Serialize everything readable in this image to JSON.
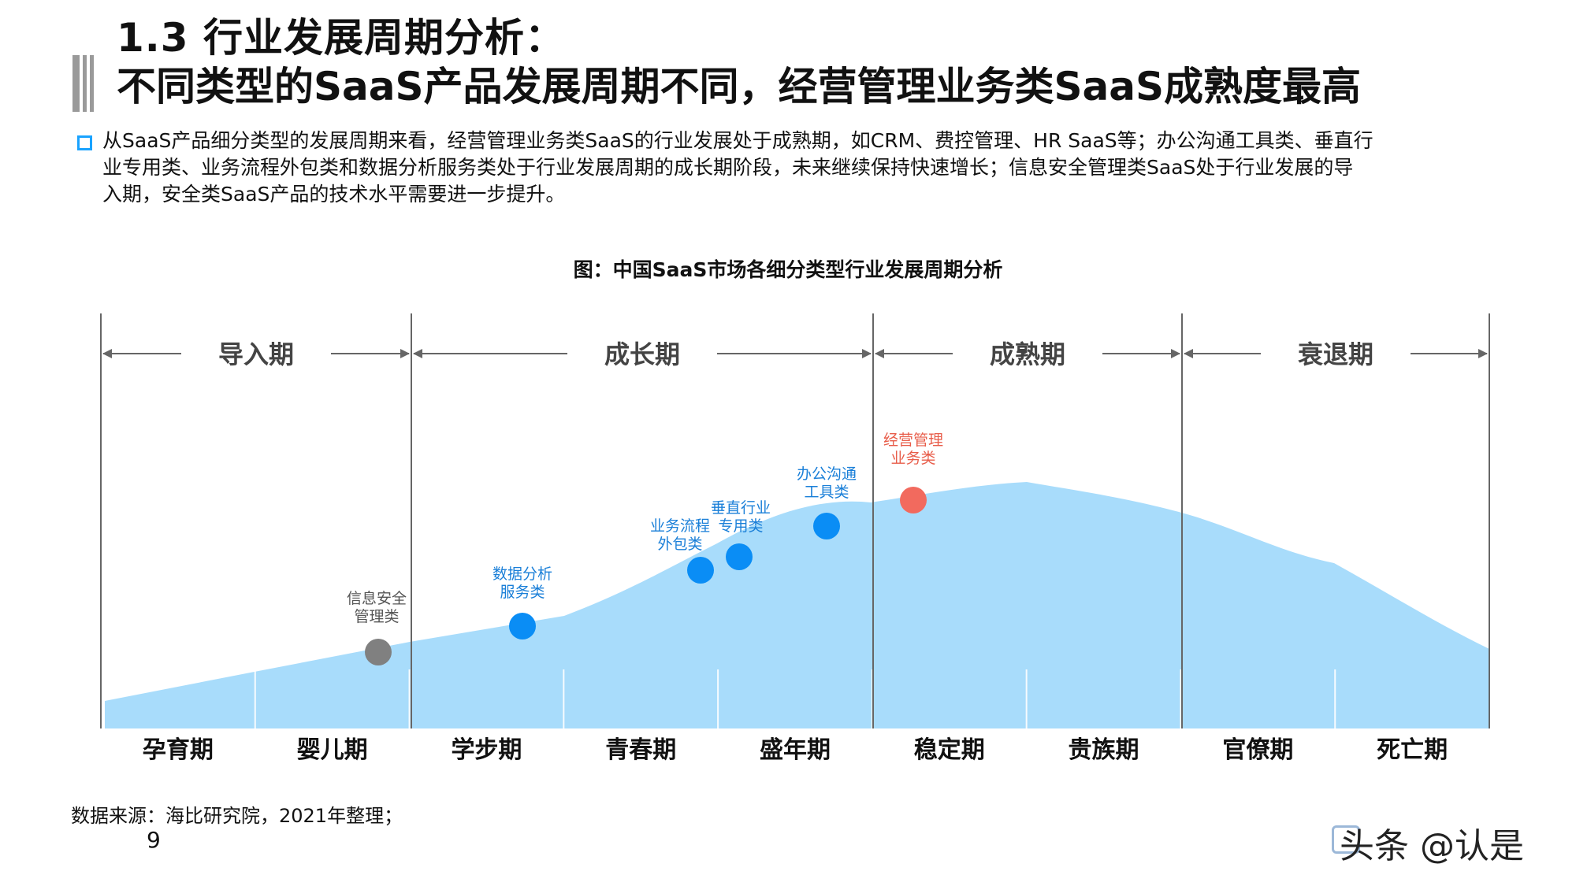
{
  "header": {
    "title_line1": "1.3 行业发展周期分析：",
    "title_line2": "不同类型的SaaS产品发展周期不同，经营管理业务类SaaS成熟度最高"
  },
  "description": {
    "lines": [
      "从SaaS产品细分类型的发展周期来看，经营管理业务类SaaS的行业发展处于成熟期，如CRM、费控管理、HR SaaS等；办公沟通工具类、垂直行",
      "业专用类、业务流程外包类和数据分析服务类处于行业发展周期的成长期阶段，未来继续保持快速增长；信息安全管理类SaaS处于行业发展的导",
      "入期，安全类SaaS产品的技术水平需要进一步提升。"
    ]
  },
  "figure": {
    "title": "图：中国SaaS市场各细分类型行业发展周期分析",
    "phases": [
      "导入期",
      "成长期",
      "成熟期",
      "衰退期"
    ],
    "stages": [
      "孕育期",
      "婴儿期",
      "学步期",
      "青春期",
      "盛年期",
      "稳定期",
      "贵族期",
      "官僚期",
      "死亡期"
    ],
    "points": [
      {
        "label_lines": [
          "信息安全",
          "管理类"
        ],
        "color": "#808080",
        "label_color": "#555555"
      },
      {
        "label_lines": [
          "数据分析",
          "服务类"
        ],
        "color": "#0a8df5",
        "label_color": "#1a7fd8"
      },
      {
        "label_lines": [
          "业务流程",
          "外包类"
        ],
        "color": "#0a8df5",
        "label_color": "#1a7fd8"
      },
      {
        "label_lines": [
          "垂直行业",
          "专用类"
        ],
        "color": "#0a8df5",
        "label_color": "#1a7fd8"
      },
      {
        "label_lines": [
          "办公沟通",
          "工具类"
        ],
        "color": "#0a8df5",
        "label_color": "#1a7fd8"
      },
      {
        "label_lines": [
          "经营管理",
          "业务类"
        ],
        "color": "#f26a5e",
        "label_color": "#e85d4a"
      }
    ],
    "colors": {
      "curve_fill": "#a8dcfb",
      "divider": "#666666",
      "arrow": "#666666"
    }
  },
  "footer": {
    "source": "数据来源：海比研究院，2021年整理；",
    "page_number": "9",
    "brand": "头条 @认是"
  }
}
